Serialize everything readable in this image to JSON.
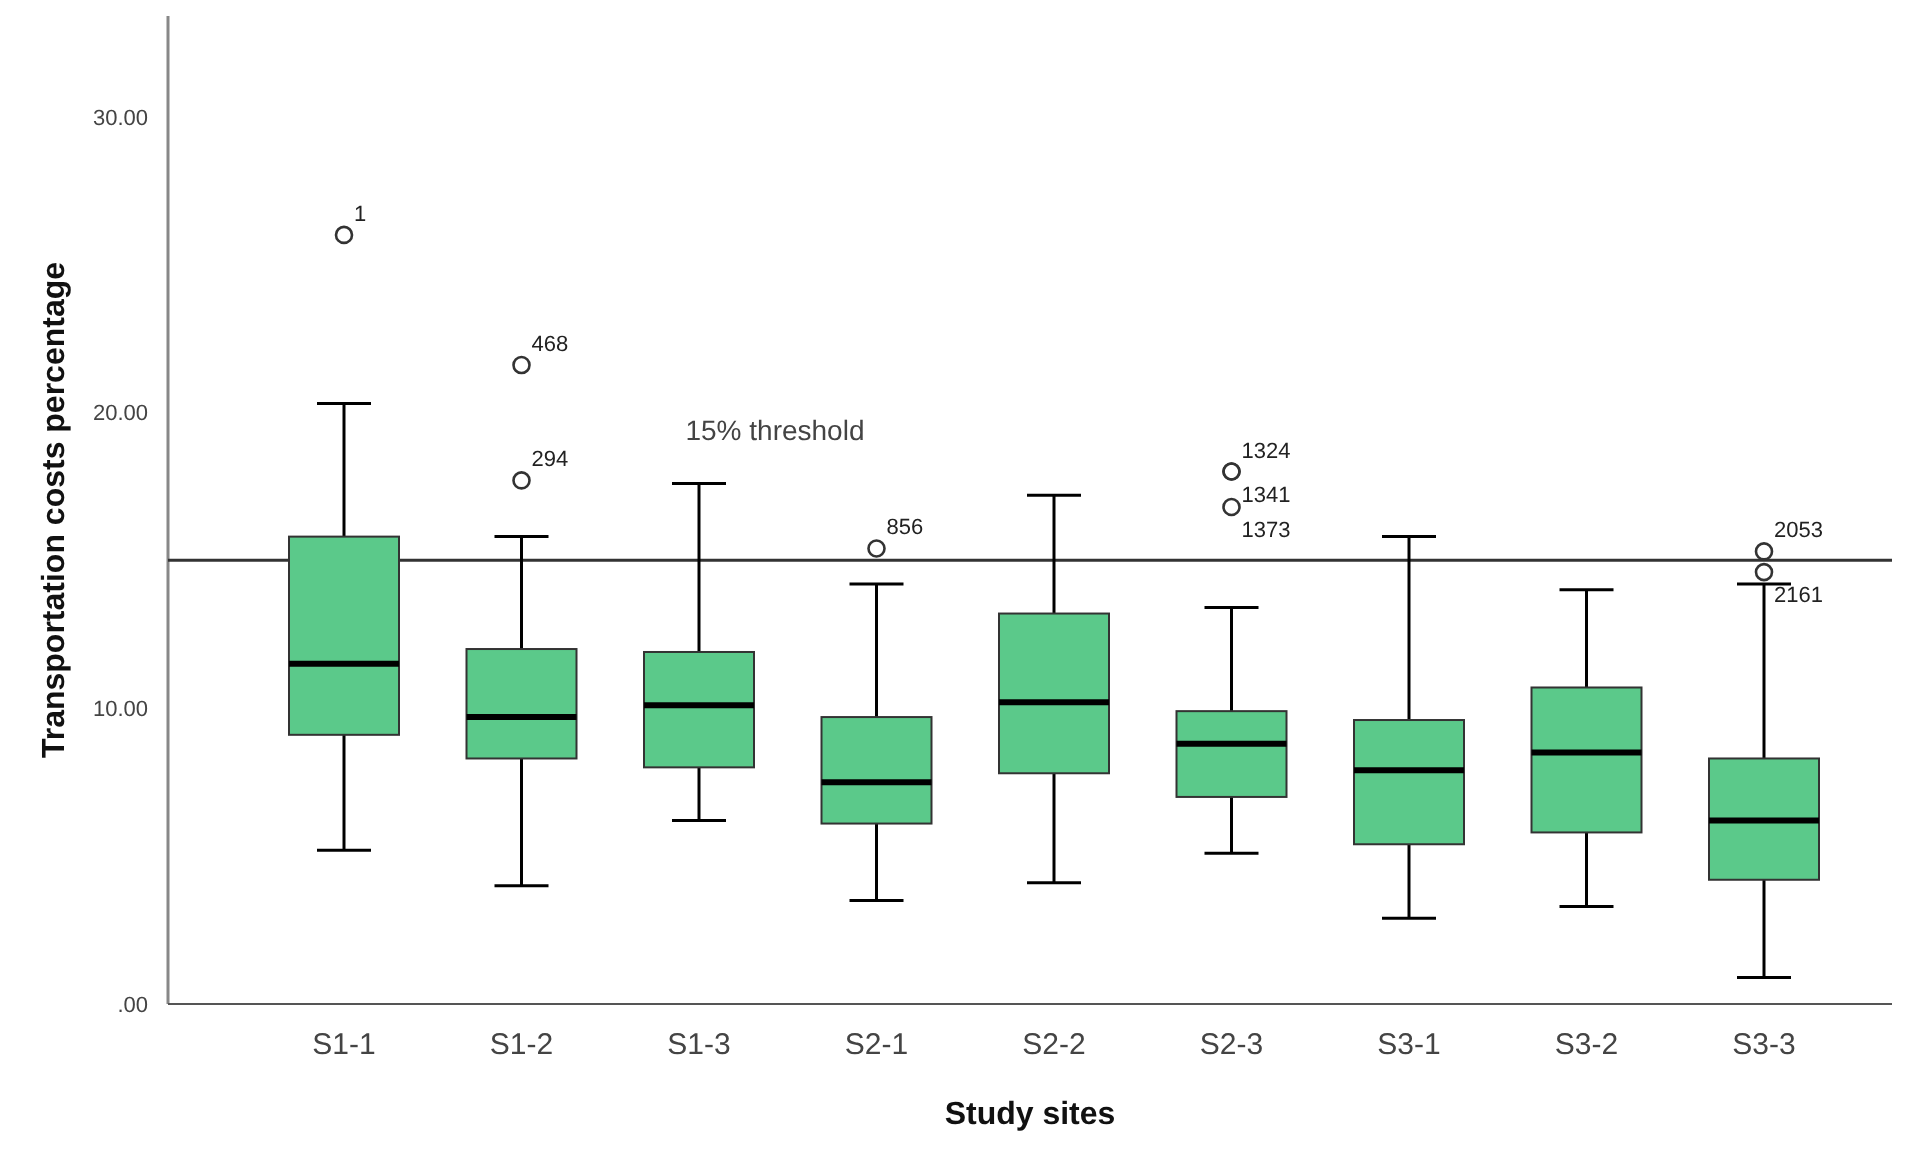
{
  "chart_data": {
    "type": "box",
    "xlabel": "Study sites",
    "ylabel": "Transportation costs percentage",
    "categories": [
      "S1-1",
      "S1-2",
      "S1-3",
      "S2-1",
      "S2-2",
      "S2-3",
      "S3-1",
      "S3-2",
      "S3-3"
    ],
    "color": "#5bc98a",
    "boxes": [
      {
        "low": 5.2,
        "q1": 9.1,
        "median": 11.5,
        "q3": 15.8,
        "high": 20.3,
        "outliers": [
          26.0
        ]
      },
      {
        "low": 4.0,
        "q1": 8.3,
        "median": 9.7,
        "q3": 12.0,
        "high": 15.8,
        "outliers": [
          21.6,
          17.7
        ]
      },
      {
        "low": 6.2,
        "q1": 8.0,
        "median": 10.1,
        "q3": 11.9,
        "high": 17.6
      },
      {
        "low": 3.5,
        "q1": 6.1,
        "median": 7.5,
        "q3": 9.7,
        "high": 14.2,
        "outliers": [
          15.4
        ]
      },
      {
        "low": 4.1,
        "q1": 7.8,
        "median": 10.2,
        "q3": 13.2,
        "high": 17.2
      },
      {
        "low": 5.1,
        "q1": 7.0,
        "median": 8.8,
        "q3": 9.9,
        "high": 13.4,
        "outliers": [
          18.0,
          18.0,
          16.8
        ]
      },
      {
        "low": 2.9,
        "q1": 5.4,
        "median": 7.9,
        "q3": 9.6,
        "high": 15.8
      },
      {
        "low": 3.3,
        "q1": 5.8,
        "median": 8.5,
        "q3": 10.7,
        "high": 14.0
      },
      {
        "low": 0.9,
        "q1": 4.2,
        "median": 6.2,
        "q3": 8.3,
        "high": 14.2,
        "outliers": [
          15.3,
          14.6
        ]
      }
    ],
    "ylim": [
      0,
      33.4
    ],
    "yticks": [
      {
        "value": 0,
        "label": ".00"
      },
      {
        "value": 10,
        "label": "10.00"
      },
      {
        "value": 20,
        "label": "20.00"
      },
      {
        "value": 30,
        "label": "30.00"
      }
    ],
    "ref_lines": [
      {
        "axis": "y",
        "value": 15,
        "label": "15% threshold",
        "color": "#333333"
      }
    ],
    "annotations": [
      "1",
      "468",
      "294",
      "856",
      "1324",
      "1341",
      "1373",
      "2053",
      "2161"
    ],
    "grid": false
  }
}
